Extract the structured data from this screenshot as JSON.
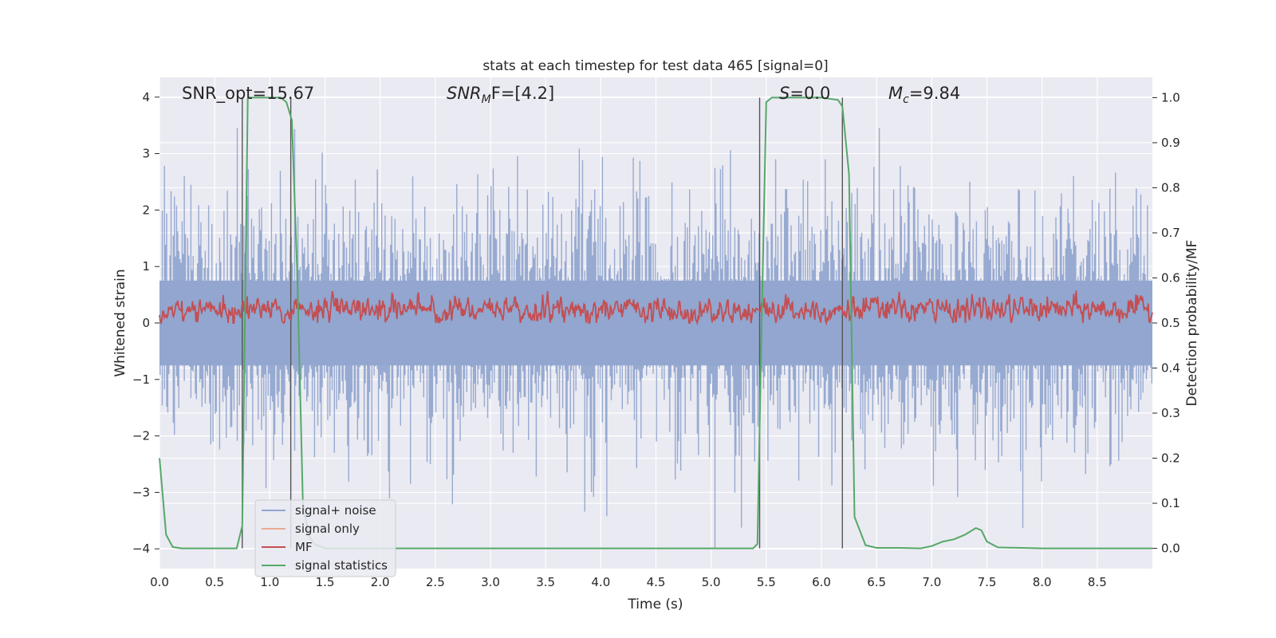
{
  "chart_data": {
    "type": "line",
    "title": "stats at each timestep for test data 465 [signal=0]",
    "xlabel": "Time (s)",
    "ylabel_left": "Whitened strain",
    "ylabel_right": "Detection probability/MF",
    "xlim": [
      0.0,
      9.0
    ],
    "ylim_left": [
      -4.35,
      4.35
    ],
    "ylim_right": [
      -0.045,
      1.045
    ],
    "x_ticks": [
      "0.0",
      "0.5",
      "1.0",
      "1.5",
      "2.0",
      "2.5",
      "3.0",
      "3.5",
      "4.0",
      "4.5",
      "5.0",
      "5.5",
      "6.0",
      "6.5",
      "7.0",
      "7.5",
      "8.0",
      "8.5"
    ],
    "y_ticks_left": [
      "−4",
      "−3",
      "−2",
      "−1",
      "0",
      "1",
      "2",
      "3",
      "4"
    ],
    "y_ticks_right": [
      "0.0",
      "0.1",
      "0.2",
      "0.3",
      "0.4",
      "0.5",
      "0.6",
      "0.7",
      "0.8",
      "0.9",
      "1.0"
    ],
    "grid": true,
    "legend_position": "lower-left",
    "annotations": {
      "snr_opt": "SNR_opt=15.67",
      "snr_mf_main": "SNR",
      "snr_mf_sub": "M",
      "snr_mf_rest": "F=[4.2]",
      "s_main": "S",
      "s_rest": "=0.0",
      "mc_main": "M",
      "mc_sub": "c",
      "mc_rest": "=9.84"
    },
    "vertical_lines_s": [
      0.75,
      1.19,
      5.44,
      6.19
    ],
    "series": [
      {
        "name": "signal+ noise",
        "axis": "left",
        "color": "#92a6cf",
        "amplitude_std": 1.0,
        "approx_range": [
          -4.0,
          3.8
        ]
      },
      {
        "name": "signal only",
        "axis": "left",
        "color": "#e9a98f",
        "values": []
      },
      {
        "name": "MF",
        "axis": "right",
        "color": "#c44e52",
        "baseline": 0.53,
        "approx_range": [
          0.5,
          0.6
        ]
      },
      {
        "name": "signal statistics",
        "axis": "right",
        "color": "#55a868",
        "x": [
          0.0,
          0.06,
          0.12,
          0.2,
          0.4,
          0.6,
          0.7,
          0.75,
          0.8,
          1.0,
          1.1,
          1.15,
          1.2,
          1.25,
          1.3,
          1.35,
          1.4,
          1.5,
          1.7,
          2.0,
          3.0,
          4.0,
          5.0,
          5.38,
          5.42,
          5.45,
          5.5,
          5.55,
          5.8,
          6.0,
          6.15,
          6.19,
          6.25,
          6.3,
          6.4,
          6.5,
          6.7,
          6.9,
          7.0,
          7.1,
          7.2,
          7.3,
          7.4,
          7.45,
          7.5,
          7.6,
          8.0,
          9.0
        ],
        "values": [
          0.2,
          0.03,
          0.003,
          0.0,
          0.0,
          0.0,
          0.0,
          0.05,
          1.0,
          1.0,
          1.0,
          0.99,
          0.95,
          0.6,
          0.1,
          0.03,
          0.01,
          0.0,
          0.0,
          0.0,
          0.0,
          0.0,
          0.0,
          0.0,
          0.01,
          0.4,
          0.99,
          1.0,
          1.0,
          1.0,
          0.995,
          0.98,
          0.83,
          0.07,
          0.007,
          0.001,
          0.001,
          0.0,
          0.005,
          0.015,
          0.02,
          0.03,
          0.045,
          0.04,
          0.015,
          0.002,
          0.0,
          0.0
        ]
      }
    ]
  }
}
